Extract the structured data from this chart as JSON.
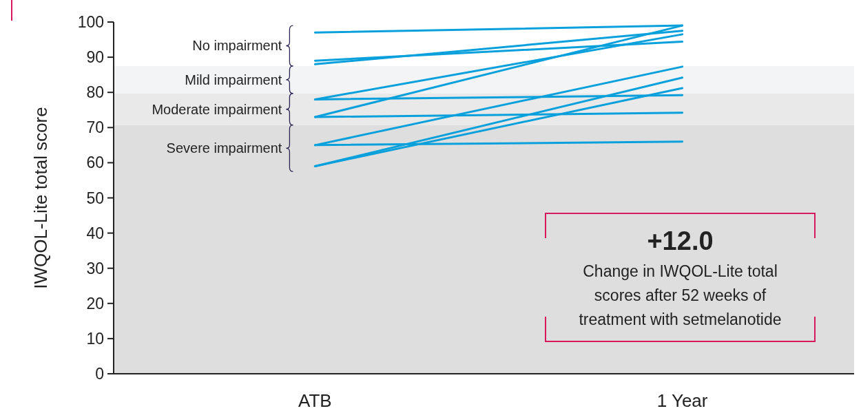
{
  "chart_data": {
    "type": "line",
    "ylabel": "IWQOL-Lite total score",
    "categories": [
      "ATB",
      "1 Year"
    ],
    "ylim": [
      0,
      100
    ],
    "yticks": [
      0,
      10,
      20,
      30,
      40,
      50,
      60,
      70,
      80,
      90,
      100
    ],
    "grid": false,
    "marker": "none",
    "line_style": "solid",
    "series": [
      {
        "color": "#0aa0dc",
        "values": [
          97,
          99
        ]
      },
      {
        "color": "#0aa0dc",
        "values": [
          89,
          94.4
        ]
      },
      {
        "color": "#0aa0dc",
        "values": [
          88,
          97.5
        ]
      },
      {
        "color": "#0aa0dc",
        "values": [
          78,
          96.5
        ]
      },
      {
        "color": "#0aa0dc",
        "values": [
          78,
          79.2
        ]
      },
      {
        "color": "#0aa0dc",
        "values": [
          73,
          99
        ]
      },
      {
        "color": "#0aa0dc",
        "values": [
          73,
          74.2
        ]
      },
      {
        "color": "#0aa0dc",
        "values": [
          65,
          87.3
        ]
      },
      {
        "color": "#0aa0dc",
        "values": [
          65,
          66
        ]
      },
      {
        "color": "#0aa0dc",
        "values": [
          59,
          84.2
        ]
      },
      {
        "color": "#0aa0dc",
        "values": [
          59,
          81.2
        ]
      }
    ],
    "bands": [
      {
        "axis": "y",
        "from": 79.7,
        "to": 87.5,
        "label": "Mild impairment",
        "color": "#f3f4f6"
      },
      {
        "axis": "y",
        "from": 70.7,
        "to": 79.7,
        "label": "Moderate impairment",
        "color": "#e9e9e9"
      },
      {
        "axis": "y",
        "from": 0,
        "to": 70.7,
        "label": "Severe impairment",
        "color": "#dedede"
      }
    ],
    "annotations": [
      "+12.0",
      "Change in IWQOL-Lite total scores after 52 weeks of treatment with setmelanotide",
      "No impairment"
    ]
  }
}
